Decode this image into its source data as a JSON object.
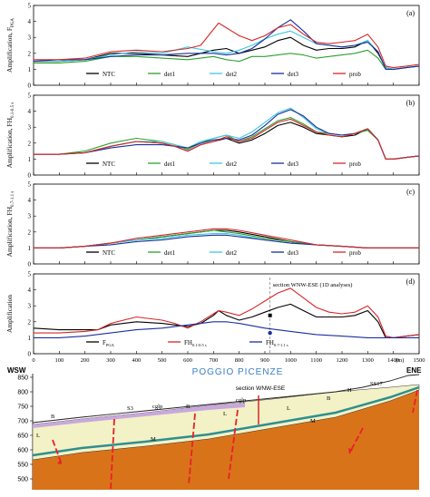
{
  "chart_data": [
    {
      "type": "line",
      "panel_label": "(a)",
      "ylabel": "Amplification, F",
      "ylabel_sub": "PGA",
      "ylim": [
        0,
        5
      ],
      "yticks": [
        "0",
        "1",
        "2",
        "3",
        "4",
        "5"
      ],
      "series": [
        {
          "name": "NTC",
          "color": "#000000",
          "x": [
            0,
            100,
            200,
            300,
            400,
            500,
            600,
            700,
            750,
            800,
            850,
            900,
            950,
            1000,
            1050,
            1100,
            1150,
            1200,
            1250,
            1300,
            1340,
            1370,
            1400,
            1450,
            1500
          ],
          "y": [
            1.5,
            1.5,
            1.6,
            2.0,
            2.0,
            1.9,
            1.8,
            2.2,
            2.3,
            2.0,
            2.2,
            2.4,
            2.8,
            3.0,
            2.5,
            2.2,
            2.3,
            2.3,
            2.4,
            2.8,
            2.0,
            1.1,
            1.0,
            1.1,
            1.2
          ]
        },
        {
          "name": "det1",
          "color": "#2ca02c",
          "x": [
            0,
            100,
            200,
            300,
            400,
            500,
            600,
            700,
            750,
            800,
            850,
            900,
            950,
            1000,
            1050,
            1100,
            1150,
            1200,
            1250,
            1300,
            1340,
            1370,
            1400,
            1450,
            1500
          ],
          "y": [
            1.4,
            1.4,
            1.5,
            1.8,
            1.8,
            1.7,
            1.6,
            1.8,
            1.6,
            1.5,
            1.8,
            1.8,
            1.9,
            2.0,
            1.9,
            1.7,
            1.8,
            1.9,
            2.0,
            2.2,
            1.7,
            1.0,
            1.0,
            1.1,
            1.2
          ]
        },
        {
          "name": "det2",
          "color": "#3ec8e0",
          "x": [
            0,
            100,
            200,
            300,
            400,
            500,
            600,
            700,
            750,
            800,
            850,
            900,
            950,
            1000,
            1050,
            1100,
            1150,
            1200,
            1250,
            1300,
            1340,
            1370,
            1400,
            1450,
            1500
          ],
          "y": [
            1.5,
            1.5,
            1.6,
            1.9,
            2.1,
            2.0,
            2.4,
            2.1,
            2.0,
            2.2,
            2.5,
            2.9,
            3.2,
            3.4,
            3.0,
            2.6,
            2.5,
            2.4,
            2.5,
            2.8,
            2.1,
            1.1,
            1.0,
            1.1,
            1.2
          ]
        },
        {
          "name": "det3",
          "color": "#1a2f9a",
          "x": [
            0,
            100,
            200,
            300,
            400,
            500,
            600,
            700,
            750,
            800,
            850,
            900,
            950,
            1000,
            1050,
            1100,
            1150,
            1200,
            1250,
            1300,
            1340,
            1370,
            1400,
            1450,
            1500
          ],
          "y": [
            1.5,
            1.6,
            1.6,
            1.8,
            1.9,
            1.9,
            2.0,
            2.0,
            1.9,
            2.0,
            2.3,
            2.9,
            3.6,
            4.1,
            3.4,
            2.6,
            2.5,
            2.4,
            2.5,
            2.7,
            2.1,
            1.0,
            1.0,
            1.1,
            1.2
          ]
        },
        {
          "name": "prob",
          "color": "#d62728",
          "x": [
            0,
            100,
            200,
            300,
            400,
            500,
            600,
            650,
            700,
            720,
            750,
            800,
            850,
            900,
            950,
            1000,
            1050,
            1100,
            1150,
            1200,
            1250,
            1300,
            1340,
            1370,
            1400,
            1450,
            1500
          ],
          "y": [
            1.6,
            1.6,
            1.7,
            2.1,
            2.2,
            2.1,
            2.3,
            2.5,
            3.5,
            3.9,
            3.6,
            3.1,
            2.8,
            3.1,
            3.6,
            3.8,
            3.2,
            2.7,
            2.6,
            2.7,
            2.8,
            3.2,
            2.4,
            1.2,
            1.1,
            1.2,
            1.3
          ]
        }
      ]
    },
    {
      "type": "line",
      "panel_label": "(b)",
      "ylabel": "Amplification, FH",
      "ylabel_sub": "0.1-0.5 s",
      "ylim": [
        0,
        5
      ],
      "yticks": [
        "0",
        "1",
        "2",
        "3",
        "4",
        "5"
      ],
      "series": [
        {
          "name": "NTC",
          "color": "#000000",
          "x": [
            0,
            100,
            200,
            300,
            400,
            500,
            550,
            600,
            650,
            700,
            750,
            800,
            850,
            900,
            950,
            1000,
            1050,
            1100,
            1150,
            1200,
            1250,
            1300,
            1340,
            1370,
            1400,
            1450,
            1500
          ],
          "y": [
            1.3,
            1.3,
            1.4,
            1.8,
            2.1,
            2.0,
            1.8,
            1.5,
            1.9,
            2.1,
            2.3,
            2.0,
            2.2,
            2.6,
            3.1,
            3.3,
            3.0,
            2.6,
            2.5,
            2.4,
            2.5,
            2.9,
            2.2,
            1.0,
            1.0,
            1.1,
            1.2
          ]
        },
        {
          "name": "det1",
          "color": "#2ca02c",
          "x": [
            0,
            100,
            200,
            300,
            400,
            500,
            550,
            600,
            650,
            700,
            750,
            800,
            850,
            900,
            950,
            1000,
            1050,
            1100,
            1150,
            1200,
            1250,
            1300,
            1340,
            1370,
            1400,
            1450,
            1500
          ],
          "y": [
            1.3,
            1.3,
            1.5,
            2.0,
            2.3,
            2.1,
            1.9,
            1.6,
            2.0,
            2.3,
            2.5,
            2.1,
            2.4,
            2.9,
            3.4,
            3.6,
            3.2,
            2.7,
            2.6,
            2.5,
            2.6,
            2.8,
            2.2,
            1.0,
            1.0,
            1.1,
            1.2
          ]
        },
        {
          "name": "det2",
          "color": "#3ec8e0",
          "x": [
            0,
            100,
            200,
            300,
            400,
            500,
            550,
            600,
            650,
            700,
            750,
            800,
            850,
            900,
            950,
            1000,
            1050,
            1100,
            1150,
            1200,
            1250,
            1300,
            1340,
            1370,
            1400,
            1450,
            1500
          ],
          "y": [
            1.3,
            1.3,
            1.4,
            1.8,
            2.1,
            2.1,
            1.9,
            1.7,
            2.1,
            2.3,
            2.5,
            2.3,
            2.7,
            3.3,
            3.9,
            4.2,
            3.6,
            2.9,
            2.6,
            2.5,
            2.6,
            2.9,
            2.2,
            1.0,
            1.0,
            1.1,
            1.2
          ]
        },
        {
          "name": "det3",
          "color": "#1a2f9a",
          "x": [
            0,
            100,
            200,
            300,
            400,
            500,
            550,
            600,
            650,
            700,
            750,
            800,
            850,
            900,
            950,
            1000,
            1050,
            1100,
            1150,
            1200,
            1250,
            1300,
            1340,
            1370,
            1400,
            1450,
            1500
          ],
          "y": [
            1.3,
            1.3,
            1.4,
            1.7,
            1.9,
            1.9,
            1.8,
            1.7,
            2.0,
            2.2,
            2.3,
            2.2,
            2.5,
            3.1,
            3.8,
            4.1,
            3.7,
            3.0,
            2.6,
            2.5,
            2.6,
            2.9,
            2.2,
            1.0,
            1.0,
            1.1,
            1.2
          ]
        },
        {
          "name": "prob",
          "color": "#d62728",
          "x": [
            0,
            100,
            200,
            300,
            400,
            500,
            550,
            600,
            650,
            700,
            750,
            800,
            850,
            900,
            950,
            1000,
            1050,
            1100,
            1150,
            1200,
            1250,
            1300,
            1340,
            1370,
            1400,
            1450,
            1500
          ],
          "y": [
            1.3,
            1.3,
            1.4,
            1.8,
            2.1,
            2.0,
            1.8,
            1.5,
            1.9,
            2.1,
            2.4,
            2.1,
            2.3,
            2.8,
            3.3,
            3.5,
            3.1,
            2.7,
            2.5,
            2.4,
            2.6,
            2.9,
            2.2,
            1.0,
            1.0,
            1.1,
            1.2
          ]
        }
      ]
    },
    {
      "type": "line",
      "panel_label": "(c)",
      "ylabel": "Amplification, FH",
      "ylabel_sub": "0.7-1.1 s",
      "ylim": [
        0,
        5
      ],
      "yticks": [
        "0",
        "1",
        "2",
        "3",
        "4",
        "5"
      ],
      "series": [
        {
          "name": "NTC",
          "color": "#000000",
          "x": [
            0,
            100,
            200,
            300,
            400,
            500,
            600,
            700,
            750,
            800,
            900,
            1000,
            1100,
            1200,
            1300,
            1400,
            1500
          ],
          "y": [
            1.0,
            1.0,
            1.1,
            1.3,
            1.5,
            1.7,
            1.9,
            2.1,
            2.1,
            2.0,
            1.7,
            1.4,
            1.2,
            1.1,
            1.0,
            1.0,
            1.0
          ]
        },
        {
          "name": "det1",
          "color": "#2ca02c",
          "x": [
            0,
            100,
            200,
            300,
            400,
            500,
            600,
            700,
            750,
            800,
            900,
            1000,
            1100,
            1200,
            1300,
            1400,
            1500
          ],
          "y": [
            1.0,
            1.0,
            1.1,
            1.3,
            1.5,
            1.7,
            1.9,
            2.1,
            2.0,
            1.9,
            1.6,
            1.4,
            1.2,
            1.1,
            1.0,
            1.0,
            1.0
          ]
        },
        {
          "name": "det2",
          "color": "#3ec8e0",
          "x": [
            0,
            100,
            200,
            300,
            400,
            500,
            600,
            700,
            750,
            800,
            900,
            1000,
            1100,
            1200,
            1300,
            1400,
            1500
          ],
          "y": [
            1.0,
            1.0,
            1.1,
            1.3,
            1.5,
            1.6,
            1.8,
            1.9,
            1.9,
            1.8,
            1.5,
            1.3,
            1.2,
            1.1,
            1.0,
            1.0,
            1.0
          ]
        },
        {
          "name": "det3",
          "color": "#1a2f9a",
          "x": [
            0,
            100,
            200,
            300,
            400,
            500,
            600,
            700,
            750,
            800,
            900,
            1000,
            1100,
            1200,
            1300,
            1400,
            1500
          ],
          "y": [
            1.0,
            1.0,
            1.1,
            1.2,
            1.4,
            1.5,
            1.7,
            1.8,
            1.8,
            1.7,
            1.5,
            1.3,
            1.2,
            1.1,
            1.0,
            1.0,
            1.0
          ]
        },
        {
          "name": "prob",
          "color": "#d62728",
          "x": [
            0,
            100,
            200,
            300,
            400,
            500,
            600,
            700,
            750,
            800,
            900,
            1000,
            1100,
            1200,
            1300,
            1400,
            1500
          ],
          "y": [
            1.0,
            1.0,
            1.1,
            1.3,
            1.6,
            1.8,
            2.0,
            2.2,
            2.2,
            2.1,
            1.8,
            1.5,
            1.2,
            1.1,
            1.0,
            1.0,
            1.0
          ]
        }
      ]
    },
    {
      "type": "line",
      "panel_label": "(d)",
      "ylabel": "Amplification",
      "ylim": [
        0,
        5
      ],
      "yticks": [
        "0",
        "1",
        "2",
        "3",
        "4",
        "5"
      ],
      "xlim": [
        0,
        1500
      ],
      "xticks": [
        "0",
        "100",
        "200",
        "300",
        "400",
        "500",
        "600",
        "700",
        "800",
        "900",
        "1000",
        "1100",
        "1200",
        "1300",
        "1400",
        "1500"
      ],
      "xunit": "(m)",
      "annotation": "section WNW-ESE (1D analyses)",
      "annotation_x": 920,
      "markers": [
        {
          "x": 920,
          "y": 2.4
        },
        {
          "x": 920,
          "y": 1.3
        }
      ],
      "series": [
        {
          "name": "F",
          "name_sub": "PGA",
          "color": "#000000",
          "x": [
            0,
            100,
            200,
            250,
            300,
            400,
            500,
            550,
            600,
            650,
            700,
            720,
            750,
            800,
            850,
            900,
            950,
            1000,
            1050,
            1100,
            1150,
            1200,
            1250,
            1300,
            1340,
            1370,
            1400,
            1450,
            1500
          ],
          "y": [
            1.6,
            1.5,
            1.5,
            1.5,
            1.8,
            2.0,
            1.9,
            1.8,
            1.7,
            1.9,
            2.4,
            2.7,
            2.4,
            2.1,
            2.3,
            2.6,
            2.9,
            3.1,
            2.7,
            2.3,
            2.3,
            2.3,
            2.4,
            2.7,
            2.0,
            1.0,
            1.0,
            1.1,
            1.2
          ]
        },
        {
          "name": "FH",
          "name_sub": "0.1-0.5 s",
          "color": "#d62728",
          "x": [
            0,
            100,
            200,
            250,
            300,
            400,
            500,
            550,
            600,
            650,
            700,
            720,
            750,
            800,
            850,
            900,
            950,
            1000,
            1050,
            1100,
            1150,
            1200,
            1250,
            1300,
            1340,
            1370,
            1400,
            1450,
            1500
          ],
          "y": [
            1.3,
            1.3,
            1.4,
            1.5,
            1.9,
            2.3,
            2.1,
            1.9,
            1.6,
            2.0,
            2.5,
            2.7,
            2.6,
            2.4,
            2.8,
            3.3,
            3.8,
            4.1,
            3.5,
            2.9,
            2.6,
            2.5,
            2.6,
            3.0,
            2.3,
            1.1,
            1.0,
            1.1,
            1.2
          ]
        },
        {
          "name": "FH",
          "name_sub": "0.7-1.1 s",
          "color": "#1a2f9a",
          "x": [
            0,
            100,
            200,
            300,
            400,
            500,
            600,
            700,
            750,
            800,
            900,
            1000,
            1100,
            1200,
            1300,
            1400,
            1500
          ],
          "y": [
            1.0,
            1.0,
            1.1,
            1.3,
            1.5,
            1.6,
            1.8,
            2.0,
            2.0,
            1.9,
            1.6,
            1.4,
            1.2,
            1.1,
            1.0,
            1.0,
            1.0
          ]
        }
      ]
    }
  ],
  "section": {
    "left_label": "WSW",
    "right_label": "ENE",
    "title": "POGGIO PICENZE",
    "section_label": "section WNW-ESE",
    "elev_ticks": [
      850,
      800,
      750,
      700,
      650,
      600,
      550,
      500
    ],
    "unit_labels": [
      "B",
      "S3",
      "cglp",
      "B",
      "cglp",
      "L",
      "B",
      "H",
      "SS17",
      "L",
      "M",
      "L",
      "M"
    ],
    "colors": {
      "bedrock": "#d9731a",
      "upper": "#f3f1c6",
      "purple": "#c8a8dc",
      "fault": "#e8202a",
      "title": "#3a7ec8",
      "section_line": "#d62728"
    }
  }
}
